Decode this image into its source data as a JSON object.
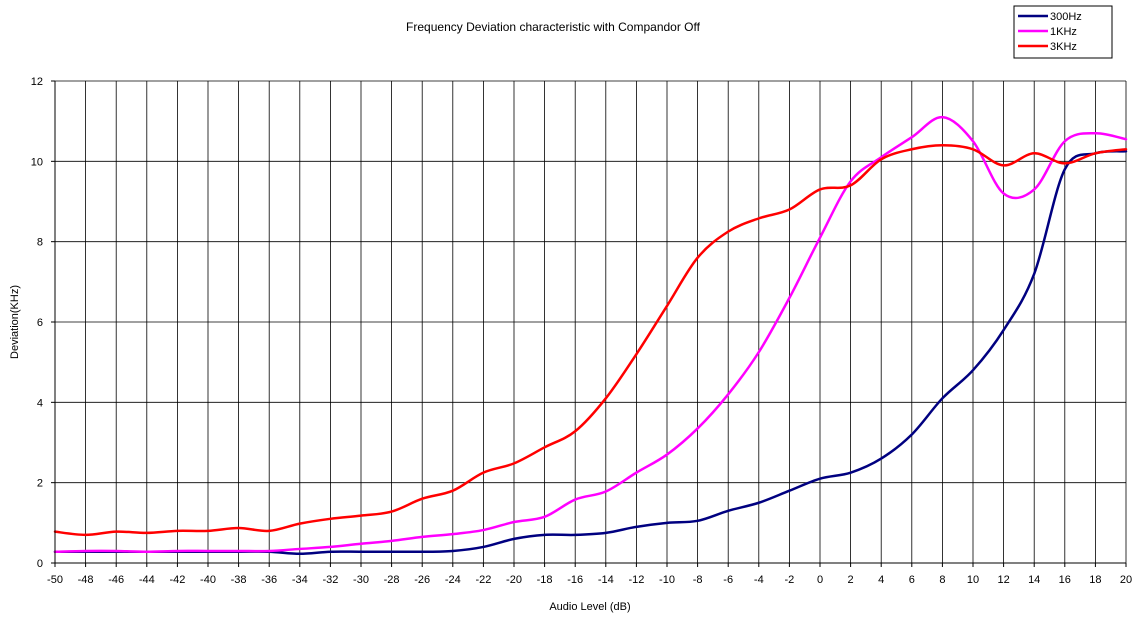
{
  "chart_data": {
    "type": "line",
    "title": "Frequency Deviation characteristic with Compandor Off",
    "xlabel": "Audio Level (dB)",
    "ylabel": "Deviation(KHz)",
    "xlim": [
      -50,
      20
    ],
    "ylim": [
      0,
      12
    ],
    "xticks": [
      -50,
      -48,
      -46,
      -44,
      -42,
      -40,
      -38,
      -36,
      -34,
      -32,
      -30,
      -28,
      -26,
      -24,
      -22,
      -20,
      -18,
      -16,
      -14,
      -12,
      -10,
      -8,
      -6,
      -4,
      -2,
      0,
      2,
      4,
      6,
      8,
      10,
      12,
      14,
      16,
      18,
      20
    ],
    "xtick_labels": [
      "-50",
      "-48",
      "-46",
      "-44",
      "-42",
      "-40",
      "-38",
      "-36",
      "-34",
      "-32",
      "-30",
      "-28",
      "-26",
      "-24",
      "-22",
      "-20",
      "-18",
      "-16",
      "-14",
      "-12",
      "-10",
      "-8",
      "-6",
      "-4",
      "-2",
      "0",
      "2",
      "4",
      "6",
      "8",
      "10",
      "12",
      "14",
      "16",
      "18",
      "20"
    ],
    "yticks": [
      0,
      2,
      4,
      6,
      8,
      10,
      12
    ],
    "ytick_labels": [
      "0",
      "2",
      "4",
      "6",
      "8",
      "10",
      "12"
    ],
    "grid": "major gridlines on both axes",
    "legend_position": "top-right",
    "x": [
      -50,
      -48,
      -46,
      -44,
      -42,
      -40,
      -38,
      -36,
      -34,
      -32,
      -30,
      -28,
      -26,
      -24,
      -22,
      -20,
      -18,
      -16,
      -14,
      -12,
      -10,
      -8,
      -6,
      -4,
      -2,
      0,
      2,
      4,
      6,
      8,
      10,
      12,
      14,
      16,
      18,
      20
    ],
    "series": [
      {
        "name": "300Hz",
        "color": "#000080",
        "values": [
          0.28,
          0.28,
          0.28,
          0.28,
          0.28,
          0.28,
          0.28,
          0.28,
          0.23,
          0.28,
          0.28,
          0.28,
          0.28,
          0.3,
          0.4,
          0.6,
          0.7,
          0.7,
          0.75,
          0.9,
          1.0,
          1.05,
          1.3,
          1.5,
          1.8,
          2.1,
          2.25,
          2.6,
          3.2,
          4.1,
          4.8,
          5.8,
          7.2,
          9.8,
          10.2,
          10.25
        ]
      },
      {
        "name": "1KHz",
        "color": "#ff00ff",
        "values": [
          0.28,
          0.3,
          0.3,
          0.28,
          0.3,
          0.3,
          0.3,
          0.3,
          0.35,
          0.4,
          0.48,
          0.55,
          0.65,
          0.72,
          0.82,
          1.02,
          1.15,
          1.58,
          1.78,
          2.25,
          2.7,
          3.35,
          4.2,
          5.25,
          6.6,
          8.1,
          9.5,
          10.1,
          10.6,
          11.1,
          10.5,
          9.2,
          9.3,
          10.5,
          10.7,
          10.55
        ]
      },
      {
        "name": "3KHz",
        "color": "#ff0000",
        "values": [
          0.78,
          0.7,
          0.78,
          0.75,
          0.8,
          0.8,
          0.87,
          0.8,
          0.98,
          1.1,
          1.18,
          1.28,
          1.6,
          1.8,
          2.25,
          2.48,
          2.88,
          3.28,
          4.1,
          5.2,
          6.4,
          7.6,
          8.25,
          8.58,
          8.8,
          9.3,
          9.4,
          10.05,
          10.3,
          10.4,
          10.3,
          9.9,
          10.2,
          9.95,
          10.2,
          10.3
        ]
      }
    ]
  }
}
